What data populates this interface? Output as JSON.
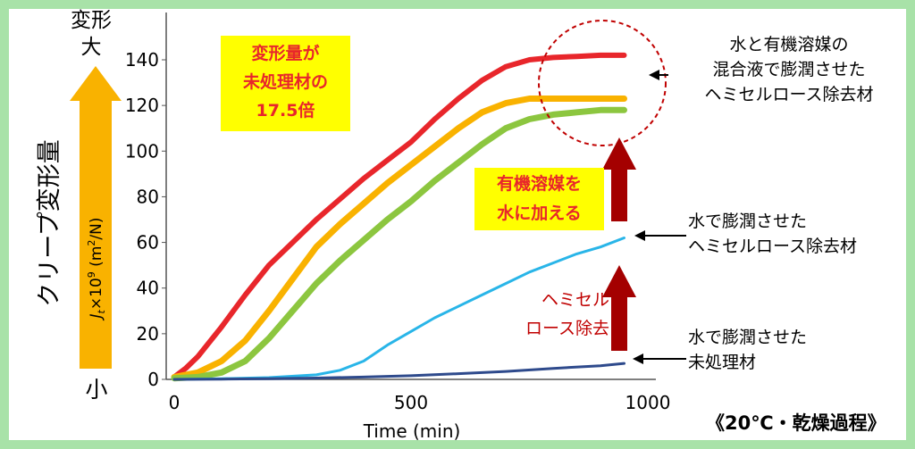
{
  "chart_data": {
    "type": "line",
    "xlabel": "Time (min)",
    "ylabel": "J_t × 10^9 (m²/N)",
    "ylabel_parts": {
      "j": "J",
      "t": "t",
      "times": "×10",
      "exp": "9",
      "unit": " (m",
      "sq": "2",
      "unit_end": "/N)"
    },
    "xlim": [
      0,
      1000
    ],
    "ylim": [
      0,
      145
    ],
    "xticks": [
      0,
      500,
      1000
    ],
    "yticks": [
      0,
      20,
      40,
      60,
      80,
      100,
      120,
      140
    ],
    "grid": false,
    "series": [
      {
        "name": "水と有機溶媒の混合液で膨潤させたヘミセルロース除去材",
        "color": "#e8262b",
        "x": [
          0,
          25,
          50,
          100,
          150,
          200,
          250,
          300,
          350,
          400,
          450,
          500,
          550,
          600,
          650,
          700,
          750,
          800,
          850,
          900,
          950
        ],
        "y": [
          1,
          5,
          10,
          23,
          37,
          50,
          60,
          70,
          79,
          88,
          96,
          104,
          114,
          123,
          131,
          137,
          140,
          141,
          141.5,
          142,
          142
        ]
      },
      {
        "name": "",
        "color": "#f9b200",
        "x": [
          0,
          50,
          100,
          150,
          200,
          250,
          300,
          350,
          400,
          450,
          500,
          550,
          600,
          650,
          700,
          750,
          800,
          850,
          900,
          950
        ],
        "y": [
          1,
          3,
          8,
          17,
          30,
          44,
          58,
          68,
          77,
          86,
          94,
          102,
          110,
          117,
          121,
          123,
          123,
          123,
          123,
          123
        ]
      },
      {
        "name": "",
        "color": "#8cc63f",
        "x": [
          0,
          50,
          100,
          150,
          200,
          250,
          300,
          350,
          400,
          450,
          500,
          550,
          600,
          650,
          700,
          750,
          800,
          850,
          900,
          950
        ],
        "y": [
          0.5,
          1,
          3,
          8,
          18,
          30,
          42,
          52,
          61,
          70,
          78,
          87,
          95,
          103,
          110,
          114,
          116,
          117,
          118,
          118
        ]
      },
      {
        "name": "水で膨潤させたヘミセルロース除去材",
        "color": "#29b5e8",
        "x": [
          0,
          100,
          200,
          300,
          350,
          400,
          450,
          500,
          550,
          600,
          650,
          700,
          750,
          800,
          850,
          900,
          950
        ],
        "y": [
          0,
          0.3,
          0.8,
          2,
          4,
          8,
          15,
          21,
          27,
          32,
          37,
          42,
          47,
          51,
          55,
          58,
          62
        ]
      },
      {
        "name": "水で膨潤させた未処理材",
        "color": "#2e4a8c",
        "x": [
          0,
          100,
          200,
          300,
          400,
          500,
          600,
          700,
          800,
          900,
          950
        ],
        "y": [
          0,
          0.1,
          0.3,
          0.6,
          1,
          1.6,
          2.5,
          3.5,
          4.8,
          6,
          7
        ]
      }
    ]
  },
  "axis_left": {
    "big_label": "クリープ変形量",
    "top_label_1": "変形",
    "top_label_2": "大",
    "bottom_label": "小"
  },
  "annotations": {
    "highlight_box": "変形量が\n未処理材の\n17.5倍",
    "organic_box": "有機溶媒を\n水に加える",
    "hemi_removal": "ヘミセル\nロース除去",
    "condition": "《20℃・乾燥過程》"
  },
  "legend_labels": [
    {
      "text": "水と有機溶媒の\n混合液で膨潤させた\nヘミセルロース除去材"
    },
    {
      "text": "水で膨潤させた\nヘミセルロース除去材"
    },
    {
      "text": "水で膨潤させた\n未処理材"
    }
  ],
  "colors": {
    "frame_border": "#a8e2a8",
    "orange_arrow": "#f9b200",
    "dark_red_arrow": "#a40000",
    "yellow_box": "#ffff00",
    "red_text": "#e8262b",
    "dark_red_text": "#c00000"
  }
}
